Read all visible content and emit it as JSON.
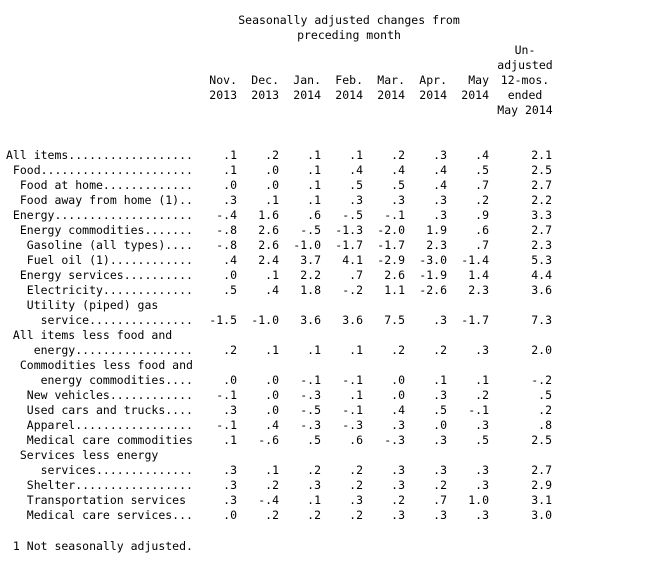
{
  "header": {
    "line1": "Seasonally adjusted changes from",
    "line2": "preceding month"
  },
  "columns": [
    {
      "top": "Nov.",
      "bottom": "2013"
    },
    {
      "top": "Dec.",
      "bottom": "2013"
    },
    {
      "top": "Jan.",
      "bottom": "2014"
    },
    {
      "top": "Feb.",
      "bottom": "2014"
    },
    {
      "top": "Mar.",
      "bottom": "2014"
    },
    {
      "top": "Apr.",
      "bottom": "2014"
    },
    {
      "top": "May",
      "bottom": "2014"
    }
  ],
  "unadjusted_header": [
    "Un-",
    "adjusted",
    "12-mos.",
    "ended",
    "May 2014"
  ],
  "rows": [
    {
      "label": "All items..................",
      "values": [
        ".1",
        ".2",
        ".1",
        ".1",
        ".2",
        ".3",
        ".4"
      ],
      "unadj": "2.1"
    },
    {
      "label": " Food......................",
      "values": [
        ".1",
        ".0",
        ".1",
        ".4",
        ".4",
        ".4",
        ".5"
      ],
      "unadj": "2.5"
    },
    {
      "label": "  Food at home.............",
      "values": [
        ".0",
        ".0",
        ".1",
        ".5",
        ".5",
        ".4",
        ".7"
      ],
      "unadj": "2.7"
    },
    {
      "label": "  Food away from home (1)..",
      "values": [
        ".3",
        ".1",
        ".1",
        ".3",
        ".3",
        ".3",
        ".2"
      ],
      "unadj": "2.2"
    },
    {
      "label": " Energy....................",
      "values": [
        "-.4",
        "1.6",
        ".6",
        "-.5",
        "-.1",
        ".3",
        ".9"
      ],
      "unadj": "3.3"
    },
    {
      "label": "  Energy commodities.......",
      "values": [
        "-.8",
        "2.6",
        "-.5",
        "-1.3",
        "-2.0",
        "1.9",
        ".6"
      ],
      "unadj": "2.7"
    },
    {
      "label": "   Gasoline (all types)....",
      "values": [
        "-.8",
        "2.6",
        "-1.0",
        "-1.7",
        "-1.7",
        "2.3",
        ".7"
      ],
      "unadj": "2.3"
    },
    {
      "label": "   Fuel oil (1)............",
      "values": [
        ".4",
        "2.4",
        "3.7",
        "4.1",
        "-2.9",
        "-3.0",
        "-1.4"
      ],
      "unadj": "5.3"
    },
    {
      "label": "  Energy services..........",
      "values": [
        ".0",
        ".1",
        "2.2",
        ".7",
        "2.6",
        "-1.9",
        "1.4"
      ],
      "unadj": "4.4"
    },
    {
      "label": "   Electricity.............",
      "values": [
        ".5",
        ".4",
        "1.8",
        "-.2",
        "1.1",
        "-2.6",
        "2.3"
      ],
      "unadj": "3.6"
    },
    {
      "label": "   Utility (piped) gas",
      "values": [],
      "unadj": ""
    },
    {
      "label": "     service...............",
      "values": [
        "-1.5",
        "-1.0",
        "3.6",
        "3.6",
        "7.5",
        ".3",
        "-1.7"
      ],
      "unadj": "7.3"
    },
    {
      "label": " All items less food and",
      "values": [],
      "unadj": ""
    },
    {
      "label": "    energy.................",
      "values": [
        ".2",
        ".1",
        ".1",
        ".1",
        ".2",
        ".2",
        ".3"
      ],
      "unadj": "2.0"
    },
    {
      "label": "  Commodities less food and",
      "values": [],
      "unadj": ""
    },
    {
      "label": "     energy commodities....",
      "values": [
        ".0",
        ".0",
        "-.1",
        "-.1",
        ".0",
        ".1",
        ".1"
      ],
      "unadj": "-.2"
    },
    {
      "label": "   New vehicles............",
      "values": [
        "-.1",
        ".0",
        "-.3",
        ".1",
        ".0",
        ".3",
        ".2"
      ],
      "unadj": ".5"
    },
    {
      "label": "   Used cars and trucks....",
      "values": [
        ".3",
        ".0",
        "-.5",
        "-.1",
        ".4",
        ".5",
        "-.1"
      ],
      "unadj": ".2"
    },
    {
      "label": "   Apparel.................",
      "values": [
        "-.1",
        ".4",
        "-.3",
        "-.3",
        ".3",
        ".0",
        ".3"
      ],
      "unadj": ".8"
    },
    {
      "label": "   Medical care commodities",
      "values": [
        ".1",
        "-.6",
        ".5",
        ".6",
        "-.3",
        ".3",
        ".5"
      ],
      "unadj": "2.5"
    },
    {
      "label": "  Services less energy",
      "values": [],
      "unadj": ""
    },
    {
      "label": "     services..............",
      "values": [
        ".3",
        ".1",
        ".2",
        ".2",
        ".3",
        ".3",
        ".3"
      ],
      "unadj": "2.7"
    },
    {
      "label": "   Shelter.................",
      "values": [
        ".3",
        ".2",
        ".3",
        ".2",
        ".3",
        ".2",
        ".3"
      ],
      "unadj": "2.9"
    },
    {
      "label": "   Transportation services",
      "values": [
        ".3",
        "-.4",
        ".1",
        ".3",
        ".2",
        ".7",
        "1.0"
      ],
      "unadj": "3.1"
    },
    {
      "label": "   Medical care services...",
      "values": [
        ".0",
        ".2",
        ".2",
        ".2",
        ".3",
        ".3",
        ".3"
      ],
      "unadj": "3.0"
    }
  ],
  "footnote": " 1 Not seasonally adjusted."
}
